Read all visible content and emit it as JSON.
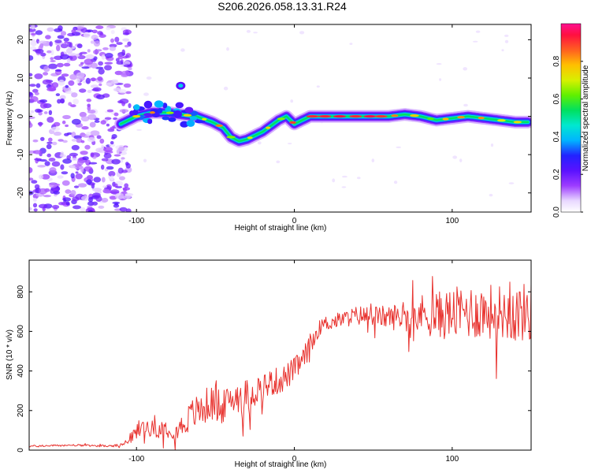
{
  "title": "S206.2026.058.13.31.R24",
  "chart_data": [
    {
      "type": "heatmap",
      "name": "spectrogram",
      "xlabel": "Height of straight line (km)",
      "ylabel": "Frequency (Hz)",
      "xlim": [
        -168,
        150
      ],
      "ylim": [
        -25,
        24
      ],
      "xticks": [
        -100,
        0,
        100
      ],
      "yticks": [
        -20,
        -10,
        0,
        10,
        20
      ],
      "noise_region_x": [
        -168,
        -108
      ],
      "ridge": {
        "x": [
          -110,
          -100,
          -90,
          -80,
          -72,
          -62,
          -52,
          -45,
          -40,
          -35,
          -30,
          -25,
          -20,
          -15,
          -10,
          -5,
          0,
          10,
          20,
          30,
          40,
          50,
          60,
          70,
          80,
          90,
          100,
          110,
          120,
          130,
          140,
          148
        ],
        "y": [
          -2,
          0,
          1,
          1,
          0.5,
          0,
          -1.5,
          -3,
          -5.5,
          -6.5,
          -6,
          -5,
          -4,
          -2.5,
          -1,
          0,
          -2,
          0,
          0,
          0,
          0,
          0,
          0,
          0.5,
          0,
          -1,
          -0.5,
          0,
          -0.5,
          -1,
          -1.5,
          -1.5
        ]
      },
      "colorbar": {
        "label": "Normalized spectral amplitude",
        "range": [
          0,
          1
        ],
        "ticks": [
          "0.0",
          "0.2",
          "0.4",
          "0.6",
          "0.8"
        ],
        "tick_values": [
          0,
          0.2,
          0.4,
          0.6,
          0.8
        ]
      }
    },
    {
      "type": "line",
      "name": "snr",
      "xlabel": "Height of straight line (km)",
      "ylabel": "SNR (10 * v/v)",
      "xlim": [
        -168,
        150
      ],
      "ylim": [
        0,
        960
      ],
      "xticks": [
        -100,
        0,
        100
      ],
      "yticks": [
        0,
        200,
        400,
        600,
        800
      ],
      "series": [
        {
          "name": "SNR",
          "color": "#e8322e",
          "x": [
            -168,
            -140,
            -115,
            -108,
            -100,
            -95,
            -90,
            -85,
            -80,
            -75,
            -70,
            -65,
            -60,
            -55,
            -50,
            -45,
            -40,
            -35,
            -30,
            -25,
            -20,
            -15,
            -10,
            -5,
            0,
            5,
            10,
            15,
            20,
            25,
            30,
            40,
            50,
            60,
            70,
            80,
            90,
            100,
            110,
            120,
            130,
            140,
            150
          ],
          "y": [
            20,
            25,
            20,
            30,
            90,
            120,
            110,
            100,
            120,
            100,
            130,
            180,
            200,
            230,
            240,
            220,
            260,
            280,
            280,
            300,
            320,
            340,
            350,
            370,
            410,
            450,
            520,
            610,
            640,
            650,
            660,
            680,
            680,
            670,
            680,
            690,
            680,
            690,
            700,
            700,
            700,
            690,
            700
          ],
          "noise_amplitude": [
            5,
            5,
            5,
            10,
            40,
            50,
            40,
            40,
            60,
            50,
            60,
            80,
            90,
            90,
            90,
            80,
            80,
            90,
            80,
            80,
            80,
            70,
            70,
            70,
            60,
            60,
            70,
            40,
            40,
            40,
            40,
            50,
            50,
            60,
            80,
            100,
            120,
            130,
            140,
            140,
            140,
            150,
            150
          ]
        }
      ]
    }
  ]
}
